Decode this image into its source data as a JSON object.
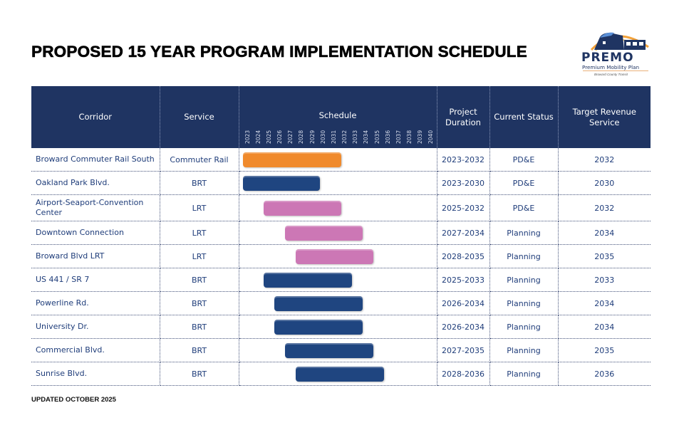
{
  "title": "PROPOSED 15 YEAR PROGRAM IMPLEMENTATION SCHEDULE",
  "logo": {
    "name": "PREMO",
    "subtitle": "Premium Mobility Plan",
    "agency": "Broward County Transit"
  },
  "footer": "UPDATED OCTOBER 2025",
  "colors": {
    "header_bg": "#1f3462",
    "commuter_rail": "#f08a2c",
    "brt": "#1f4580",
    "lrt": "#cc77b5"
  },
  "headers": {
    "corridor": "Corridor",
    "service": "Service",
    "schedule": "Schedule",
    "duration": "Project Duration",
    "status": "Current Status",
    "target": "Target Revenue Service"
  },
  "chart_data": {
    "type": "gantt",
    "title": "Schedule",
    "x_ticks": [
      "2023",
      "2024",
      "2025",
      "2026",
      "2027",
      "2028",
      "2029",
      "2030",
      "2031",
      "2032",
      "2033",
      "2034",
      "2035",
      "2036",
      "2037",
      "2038",
      "2039",
      "2040"
    ],
    "x_range": [
      2023,
      2040
    ],
    "rows": [
      {
        "corridor": "Broward Commuter Rail South",
        "service": "Commuter Rail",
        "start": 2023,
        "end": 2032,
        "duration": "2023-2032",
        "status": "PD&E",
        "target": "2032"
      },
      {
        "corridor": "Oakland Park Blvd.",
        "service": "BRT",
        "start": 2023,
        "end": 2030,
        "duration": "2023-2030",
        "status": "PD&E",
        "target": "2030"
      },
      {
        "corridor": "Airport-Seaport-Convention Center",
        "service": "LRT",
        "start": 2025,
        "end": 2032,
        "duration": "2025-2032",
        "status": "PD&E",
        "target": "2032"
      },
      {
        "corridor": "Downtown Connection",
        "service": "LRT",
        "start": 2027,
        "end": 2034,
        "duration": "2027-2034",
        "status": "Planning",
        "target": "2034"
      },
      {
        "corridor": "Broward Blvd LRT",
        "service": "LRT",
        "start": 2028,
        "end": 2035,
        "duration": "2028-2035",
        "status": "Planning",
        "target": "2035"
      },
      {
        "corridor": "US 441 / SR 7",
        "service": "BRT",
        "start": 2025,
        "end": 2033,
        "duration": "2025-2033",
        "status": "Planning",
        "target": "2033"
      },
      {
        "corridor": "Powerline Rd.",
        "service": "BRT",
        "start": 2026,
        "end": 2034,
        "duration": "2026-2034",
        "status": "Planning",
        "target": "2034"
      },
      {
        "corridor": "University Dr.",
        "service": "BRT",
        "start": 2026,
        "end": 2034,
        "duration": "2026-2034",
        "status": "Planning",
        "target": "2034"
      },
      {
        "corridor": "Commercial Blvd.",
        "service": "BRT",
        "start": 2027,
        "end": 2035,
        "duration": "2027-2035",
        "status": "Planning",
        "target": "2035"
      },
      {
        "corridor": "Sunrise Blvd.",
        "service": "BRT",
        "start": 2028,
        "end": 2036,
        "duration": "2028-2036",
        "status": "Planning",
        "target": "2036"
      }
    ]
  }
}
